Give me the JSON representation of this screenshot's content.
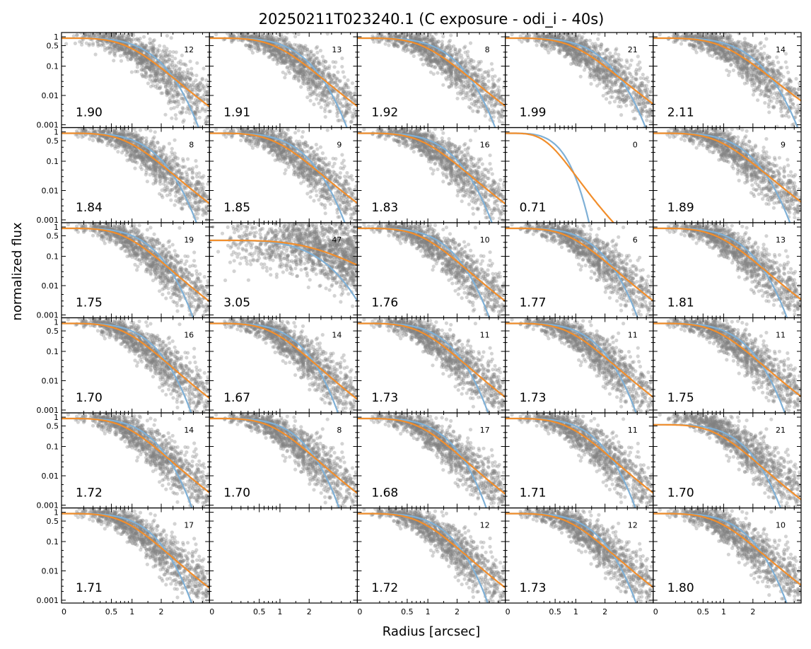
{
  "chart_data": {
    "type": "scatter",
    "title": "20250211T023240.1 (C exposure - odi_i - 40s)",
    "xlabel": "Radius [arcsec]",
    "ylabel": "normalized flux",
    "y_scale": "log",
    "x_scale": "sqrt",
    "xlim": [
      0,
      4.4
    ],
    "ylim": [
      0.0008,
      1.4
    ],
    "x_ticks": [
      "0",
      "0.5",
      "1",
      "2"
    ],
    "x_tick_values": [
      0,
      0.5,
      1,
      2
    ],
    "y_ticks": [
      "1",
      "0.5",
      "0.1",
      "0.01",
      "0.001"
    ],
    "y_tick_values": [
      1,
      0.5,
      0.1,
      0.01,
      0.001
    ],
    "grid": false,
    "series_colors": {
      "data": "#808080",
      "gaussian_fit": "#7fb0d6",
      "moffat_fit": "#f28e2b"
    },
    "grid_rows": 6,
    "grid_cols": 5,
    "panels": [
      {
        "row": 0,
        "col": 0,
        "fwhm": "1.90",
        "nstars": "12"
      },
      {
        "row": 0,
        "col": 1,
        "fwhm": "1.91",
        "nstars": "13"
      },
      {
        "row": 0,
        "col": 2,
        "fwhm": "1.92",
        "nstars": "8"
      },
      {
        "row": 0,
        "col": 3,
        "fwhm": "1.99",
        "nstars": "21"
      },
      {
        "row": 0,
        "col": 4,
        "fwhm": "2.11",
        "nstars": "14"
      },
      {
        "row": 1,
        "col": 0,
        "fwhm": "1.84",
        "nstars": "8"
      },
      {
        "row": 1,
        "col": 1,
        "fwhm": "1.85",
        "nstars": "9"
      },
      {
        "row": 1,
        "col": 2,
        "fwhm": "1.83",
        "nstars": "16"
      },
      {
        "row": 1,
        "col": 3,
        "fwhm": "0.71",
        "nstars": "0",
        "empty": true
      },
      {
        "row": 1,
        "col": 4,
        "fwhm": "1.89",
        "nstars": "9"
      },
      {
        "row": 2,
        "col": 0,
        "fwhm": "1.75",
        "nstars": "19"
      },
      {
        "row": 2,
        "col": 1,
        "fwhm": "3.05",
        "nstars": "47",
        "noisy": true
      },
      {
        "row": 2,
        "col": 2,
        "fwhm": "1.76",
        "nstars": "10"
      },
      {
        "row": 2,
        "col": 3,
        "fwhm": "1.77",
        "nstars": "6"
      },
      {
        "row": 2,
        "col": 4,
        "fwhm": "1.81",
        "nstars": "13"
      },
      {
        "row": 3,
        "col": 0,
        "fwhm": "1.70",
        "nstars": "16"
      },
      {
        "row": 3,
        "col": 1,
        "fwhm": "1.67",
        "nstars": "14"
      },
      {
        "row": 3,
        "col": 2,
        "fwhm": "1.73",
        "nstars": "11"
      },
      {
        "row": 3,
        "col": 3,
        "fwhm": "1.73",
        "nstars": "11"
      },
      {
        "row": 3,
        "col": 4,
        "fwhm": "1.75",
        "nstars": "11"
      },
      {
        "row": 4,
        "col": 0,
        "fwhm": "1.72",
        "nstars": "14"
      },
      {
        "row": 4,
        "col": 1,
        "fwhm": "1.70",
        "nstars": "8"
      },
      {
        "row": 4,
        "col": 2,
        "fwhm": "1.68",
        "nstars": "17"
      },
      {
        "row": 4,
        "col": 3,
        "fwhm": "1.71",
        "nstars": "11"
      },
      {
        "row": 4,
        "col": 4,
        "fwhm": "1.70",
        "nstars": "21"
      },
      {
        "row": 5,
        "col": 0,
        "fwhm": "1.71",
        "nstars": "17"
      },
      {
        "row": 5,
        "col": 1,
        "fwhm": "",
        "nstars": "",
        "blank": true
      },
      {
        "row": 5,
        "col": 2,
        "fwhm": "1.72",
        "nstars": "12"
      },
      {
        "row": 5,
        "col": 3,
        "fwhm": "1.73",
        "nstars": "12"
      },
      {
        "row": 5,
        "col": 4,
        "fwhm": "1.80",
        "nstars": "10"
      }
    ]
  }
}
